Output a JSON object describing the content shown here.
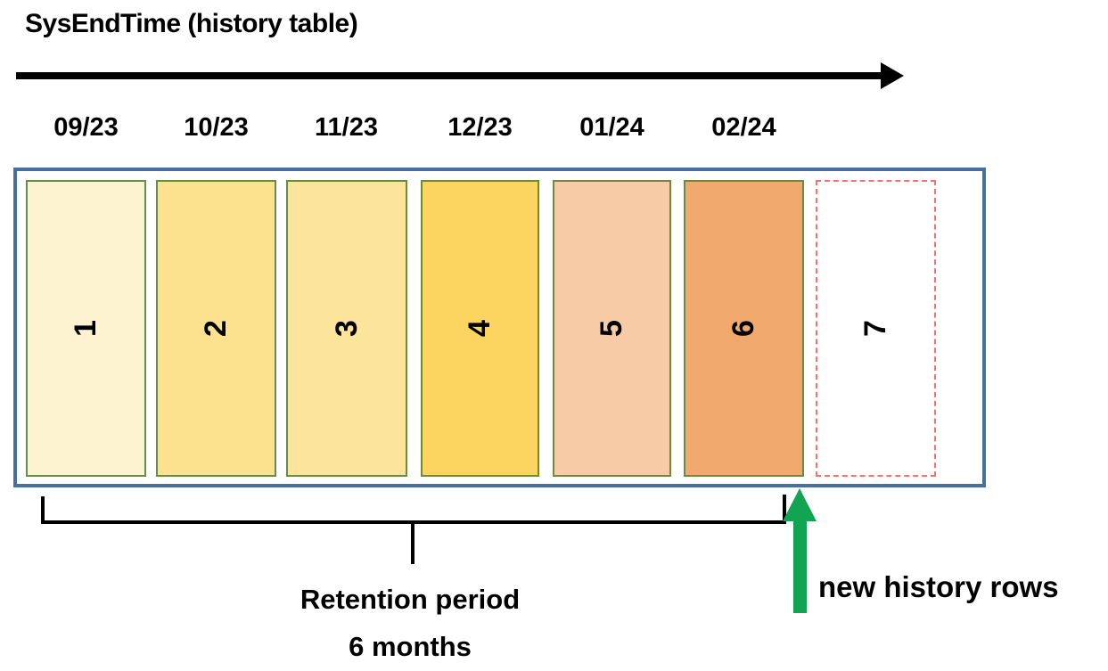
{
  "title": "SysEndTime (history table)",
  "timeline": {
    "axis": "time-arrow-right",
    "months": [
      "09/23",
      "10/23",
      "11/23",
      "12/23",
      "01/24",
      "02/24"
    ]
  },
  "partitions": [
    {
      "label": "1",
      "month": "09/23",
      "fill": "#FDF3D0",
      "css": "background:#FDF3D0"
    },
    {
      "label": "2",
      "month": "10/23",
      "fill": "#FCE28E",
      "css": "background:#FCE28E"
    },
    {
      "label": "3",
      "month": "11/23",
      "fill": "#FCE59B",
      "css": "background:#FCE59B"
    },
    {
      "label": "4",
      "month": "12/23",
      "fill": "#FBD55F",
      "css": "background:#FBD55F"
    },
    {
      "label": "5",
      "month": "01/24",
      "fill": "#F7CBA6",
      "css": "background:#F7CBA6"
    },
    {
      "label": "6",
      "month": "02/24",
      "fill": "#F1A96E",
      "css": "background:#F1A96E"
    },
    {
      "label": "7",
      "month": "",
      "fill": "#FFFFFF",
      "css": "background:#FFFFFF;border:2px dashed #F47272"
    }
  ],
  "annotations": {
    "retention_line1": "Retention period",
    "retention_line2": "6 months",
    "new_rows_label": "new history rows"
  },
  "colors": {
    "container_border": "#44719E",
    "partition_border": "#678D45",
    "future_partition_dash": "#F47272",
    "timeline_arrow": "#000000",
    "bracket": "#000000",
    "new_rows_arrow": "#13A453",
    "new_rows_arrow_css_head": "border-bottom:37px solid #13A453",
    "new_rows_arrow_css_shaft": "background:#13A453"
  }
}
